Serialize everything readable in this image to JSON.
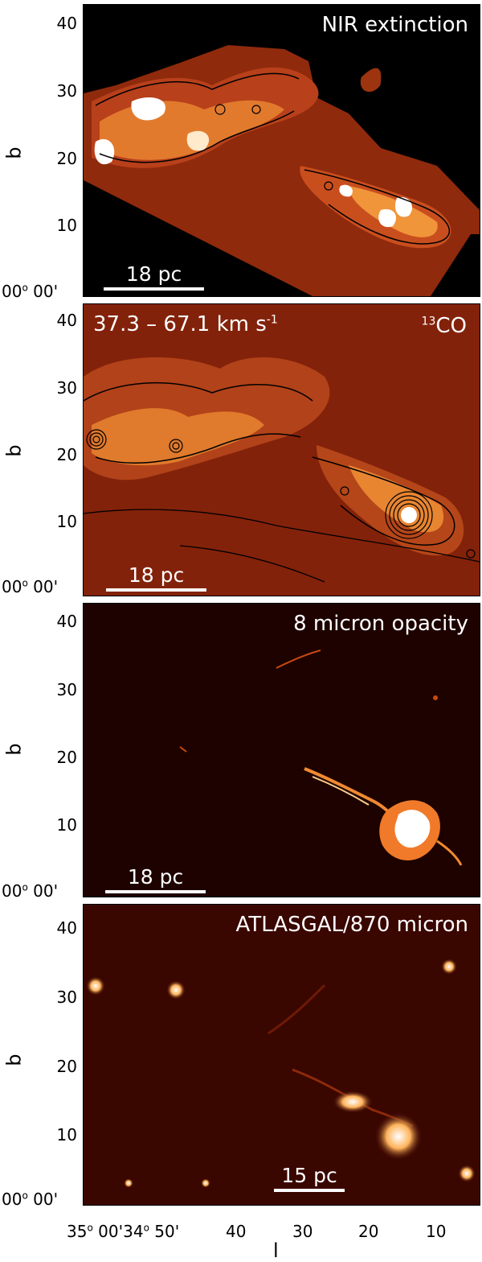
{
  "panels": [
    {
      "title": "NIR extinction",
      "scale": "18 pc"
    },
    {
      "title": "37.3 – 67.1 km s",
      "title_exp": "-1",
      "iso_sup": "13",
      "iso_main": "CO",
      "scale": "18 pc"
    },
    {
      "title": "8 micron opacity",
      "scale": "18 pc"
    },
    {
      "title": "ATLASGAL/870 micron",
      "scale": "15 pc"
    }
  ],
  "y_axis": {
    "label": "b",
    "ticks": [
      "40",
      "30",
      "20",
      "10"
    ],
    "origin_deg": "00",
    "origin_sym": "o",
    "origin_min": "00'"
  },
  "x_axis": {
    "label": "l",
    "t0_deg": "35",
    "t0_sym": "o",
    "t0_min": "00'",
    "t1_deg": "34",
    "t1_sym": "o",
    "t1_min": "50'",
    "ticks": [
      "40",
      "30",
      "20",
      "10"
    ]
  },
  "colors": {
    "background": "#000000",
    "map_dark": "#3a0a04",
    "map_mid": "#a52d10",
    "map_bright": "#f39a3c",
    "peak": "#ffffff",
    "contour": "#000000"
  }
}
